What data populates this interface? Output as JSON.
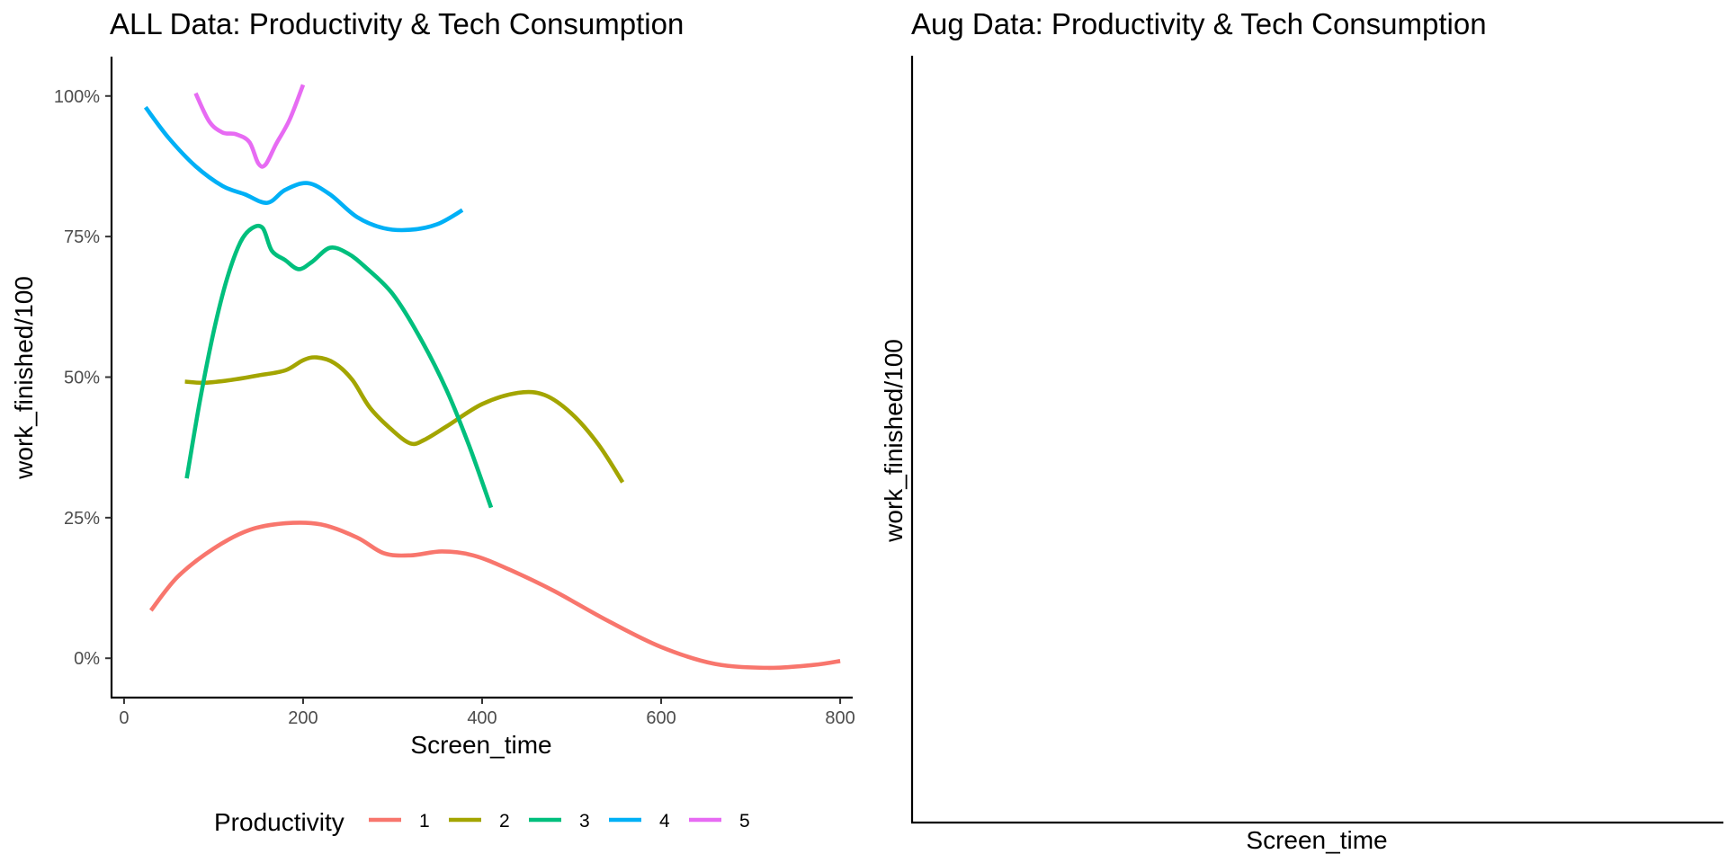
{
  "chart_data": [
    {
      "type": "line",
      "title": "ALL Data: Productivity & Tech Consumption",
      "xlabel": "Screen_time",
      "ylabel": "work_finished/100",
      "xlim": [
        -14,
        814
      ],
      "ylim": [
        -0.07,
        1.07
      ],
      "x_ticks": [
        0,
        200,
        400,
        600,
        800
      ],
      "x_tick_labels": [
        "0",
        "200",
        "400",
        "600",
        "800"
      ],
      "y_ticks": [
        0,
        0.25,
        0.5,
        0.75,
        1.0
      ],
      "y_tick_labels": [
        "0%",
        "25%",
        "50%",
        "75%",
        "100%"
      ],
      "grid": false,
      "legend": {
        "title": "Productivity",
        "placement": "bottom",
        "entries": [
          "1",
          "2",
          "3",
          "4",
          "5"
        ]
      },
      "series": [
        {
          "name": "1",
          "color": "#F8766D",
          "points": [
            [
              30,
              0.085
            ],
            [
              60,
              0.145
            ],
            [
              100,
              0.195
            ],
            [
              140,
              0.228
            ],
            [
              180,
              0.24
            ],
            [
              220,
              0.238
            ],
            [
              260,
              0.215
            ],
            [
              290,
              0.187
            ],
            [
              320,
              0.183
            ],
            [
              355,
              0.19
            ],
            [
              390,
              0.183
            ],
            [
              430,
              0.158
            ],
            [
              480,
              0.12
            ],
            [
              540,
              0.067
            ],
            [
              600,
              0.02
            ],
            [
              660,
              -0.01
            ],
            [
              720,
              -0.017
            ],
            [
              770,
              -0.012
            ],
            [
              800,
              -0.005
            ]
          ]
        },
        {
          "name": "2",
          "color": "#A3A500",
          "points": [
            [
              68,
              0.492
            ],
            [
              90,
              0.49
            ],
            [
              120,
              0.495
            ],
            [
              150,
              0.503
            ],
            [
              180,
              0.512
            ],
            [
              200,
              0.53
            ],
            [
              215,
              0.535
            ],
            [
              235,
              0.525
            ],
            [
              255,
              0.495
            ],
            [
              275,
              0.445
            ],
            [
              300,
              0.405
            ],
            [
              320,
              0.382
            ],
            [
              335,
              0.388
            ],
            [
              360,
              0.412
            ],
            [
              400,
              0.452
            ],
            [
              440,
              0.472
            ],
            [
              470,
              0.468
            ],
            [
              500,
              0.435
            ],
            [
              530,
              0.38
            ],
            [
              557,
              0.313
            ]
          ]
        },
        {
          "name": "3",
          "color": "#00BF7D",
          "points": [
            [
              70,
              0.32
            ],
            [
              85,
              0.46
            ],
            [
              100,
              0.58
            ],
            [
              115,
              0.675
            ],
            [
              130,
              0.74
            ],
            [
              143,
              0.765
            ],
            [
              155,
              0.765
            ],
            [
              165,
              0.725
            ],
            [
              180,
              0.708
            ],
            [
              195,
              0.692
            ],
            [
              210,
              0.705
            ],
            [
              230,
              0.73
            ],
            [
              250,
              0.72
            ],
            [
              270,
              0.695
            ],
            [
              300,
              0.648
            ],
            [
              330,
              0.572
            ],
            [
              360,
              0.478
            ],
            [
              385,
              0.38
            ],
            [
              410,
              0.268
            ]
          ]
        },
        {
          "name": "4",
          "color": "#00B0F6",
          "points": [
            [
              24,
              0.98
            ],
            [
              50,
              0.925
            ],
            [
              80,
              0.875
            ],
            [
              110,
              0.84
            ],
            [
              135,
              0.825
            ],
            [
              160,
              0.81
            ],
            [
              180,
              0.833
            ],
            [
              205,
              0.845
            ],
            [
              230,
              0.825
            ],
            [
              260,
              0.785
            ],
            [
              290,
              0.765
            ],
            [
              320,
              0.762
            ],
            [
              350,
              0.772
            ],
            [
              378,
              0.797
            ]
          ]
        },
        {
          "name": "5",
          "color": "#E76BF3",
          "points": [
            [
              80,
              1.005
            ],
            [
              95,
              0.955
            ],
            [
              110,
              0.935
            ],
            [
              125,
              0.932
            ],
            [
              140,
              0.918
            ],
            [
              150,
              0.88
            ],
            [
              158,
              0.878
            ],
            [
              170,
              0.915
            ],
            [
              185,
              0.958
            ],
            [
              200,
              1.02
            ]
          ]
        }
      ]
    },
    {
      "type": "line",
      "title": "Aug Data: Productivity & Tech Consumption",
      "xlabel": "Screen_time",
      "ylabel": "work_finished/100",
      "grid": false,
      "series": []
    }
  ]
}
